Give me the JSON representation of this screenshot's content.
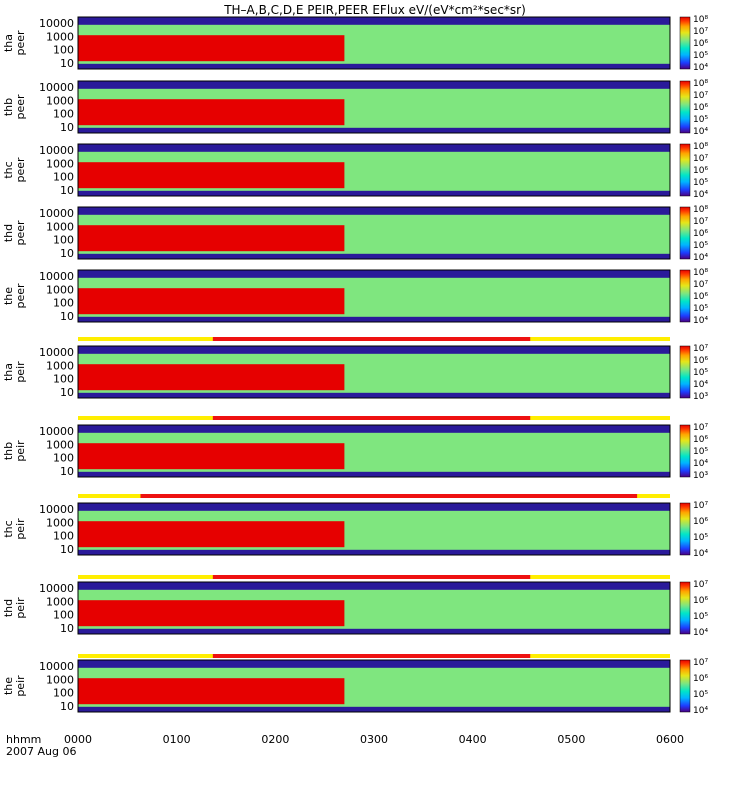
{
  "title": "TH–A,B,C,D,E PEIR,PEER EFlux eV/(eV*cm²*sec*sr)",
  "time_axis": {
    "label": "hhmm",
    "date": "2007 Aug 06",
    "ticks": [
      "0000",
      "0100",
      "0200",
      "0300",
      "0400",
      "0500",
      "0600"
    ]
  },
  "colormap": [
    "#4b0082",
    "#1e3cff",
    "#00b4ff",
    "#00e6c8",
    "#7fe67f",
    "#e6e619",
    "#ffa500",
    "#ff3c00",
    "#e60000"
  ],
  "chart_data": {
    "type": "heatmap",
    "x_range": [
      "0000",
      "0600"
    ],
    "y_scale": "log",
    "y_ticks": [
      "10",
      "100",
      "1000",
      "10000"
    ],
    "panels": [
      {
        "probe": "tha",
        "species": "peer",
        "cbar": [
          "10⁴",
          "10⁵",
          "10⁶",
          "10⁷",
          "10⁸"
        ]
      },
      {
        "probe": "thb",
        "species": "peer",
        "cbar": [
          "10⁴",
          "10⁵",
          "10⁶",
          "10⁷",
          "10⁸"
        ]
      },
      {
        "probe": "thc",
        "species": "peer",
        "cbar": [
          "10⁴",
          "10⁵",
          "10⁶",
          "10⁷",
          "10⁸"
        ]
      },
      {
        "probe": "thd",
        "species": "peer",
        "cbar": [
          "10⁴",
          "10⁵",
          "10⁶",
          "10⁷",
          "10⁸"
        ]
      },
      {
        "probe": "the",
        "species": "peer",
        "cbar": [
          "10⁴",
          "10⁵",
          "10⁶",
          "10⁷",
          "10⁸"
        ]
      },
      {
        "probe": "tha",
        "species": "peir",
        "cbar": [
          "10³",
          "10⁴",
          "10⁵",
          "10⁶",
          "10⁷"
        ]
      },
      {
        "probe": "thb",
        "species": "peir",
        "cbar": [
          "10³",
          "10⁴",
          "10⁵",
          "10⁶",
          "10⁷"
        ]
      },
      {
        "probe": "thc",
        "species": "peir",
        "cbar": [
          "10⁴",
          "10⁵",
          "10⁶",
          "10⁷"
        ]
      },
      {
        "probe": "thd",
        "species": "peir",
        "cbar": [
          "10⁴",
          "10⁵",
          "10⁶",
          "10⁷"
        ]
      },
      {
        "probe": "the",
        "species": "peir",
        "cbar": [
          "10⁴",
          "10⁵",
          "10⁶",
          "10⁷"
        ]
      }
    ],
    "mode_bars": [
      {
        "fast_start": "0122",
        "fast_end": "0435"
      },
      {
        "fast_start": "0122",
        "fast_end": "0435"
      },
      {
        "fast_start": "0038",
        "fast_end": "0540"
      },
      {
        "fast_start": "0122",
        "fast_end": "0435"
      },
      {
        "fast_start": "0122",
        "fast_end": "0435"
      }
    ]
  }
}
